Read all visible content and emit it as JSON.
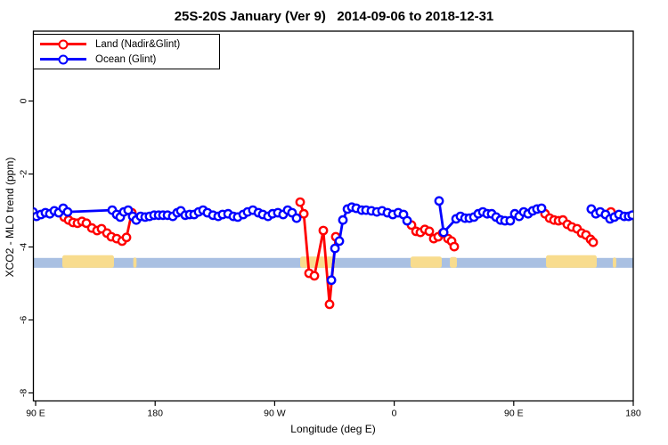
{
  "title": "25S-20S January (Ver 9)   2014-09-06 to 2018-12-31",
  "legend": {
    "items": [
      {
        "label": "Land (Nadir&Glint)",
        "color": "#ff0000"
      },
      {
        "label": "Ocean (Glint)",
        "color": "#0000ff"
      }
    ]
  },
  "chart_data": {
    "type": "line",
    "title": "25S-20S January (Ver 9)   2014-09-06 to 2018-12-31",
    "xlabel": "Longitude (deg E)",
    "ylabel": "XCO2 - MLO trend (ppm)",
    "grid": false,
    "legend_position": "top-left",
    "xlim": [
      88,
      540
    ],
    "ylim": [
      -8.2,
      1.9
    ],
    "x_axis": {
      "ticks": [
        {
          "deg": 90,
          "label": "90 E"
        },
        {
          "deg": 180,
          "label": "180"
        },
        {
          "deg": 270,
          "label": "90 W"
        },
        {
          "deg": 360,
          "label": "0"
        },
        {
          "deg": 450,
          "label": "90 E"
        },
        {
          "deg": 540,
          "label": "180"
        }
      ]
    },
    "y_axis": {
      "ticks": [
        {
          "value": 0,
          "label": "0"
        },
        {
          "value": -2,
          "label": "-2"
        },
        {
          "value": -4,
          "label": "-4"
        },
        {
          "value": -6,
          "label": "-6"
        },
        {
          "value": -8,
          "label": "-8"
        }
      ]
    },
    "reference_band": {
      "ocean_color": "#a9c0e2",
      "land_color": "#f8dc8e",
      "y_from": -4.3,
      "y_to": -4.57,
      "land_segments": [
        {
          "name": "australia",
          "from": 110.1,
          "to": 149.0,
          "bump": 3
        },
        {
          "name": "new-caledonia",
          "from": 163.5,
          "to": 166.0,
          "bump": 0.5
        },
        {
          "name": "south-america",
          "from": 289.2,
          "to": 315.4,
          "bump": 1.5
        },
        {
          "name": "africa",
          "from": 372.3,
          "to": 395.8,
          "bump": 1.5
        },
        {
          "name": "madagascar",
          "from": 401.9,
          "to": 407.2,
          "bump": 1
        },
        {
          "name": "australia-2",
          "from": 474.3,
          "to": 512.5,
          "bump": 3
        },
        {
          "name": "new-caledonia-2",
          "from": 524.6,
          "to": 527.2,
          "bump": 0.5
        }
      ]
    },
    "series": [
      {
        "name": "Land (Nadir&Glint)",
        "color": "#ff0000",
        "segments": [
          [
            [
              111.5,
              -3.18
            ],
            [
              114.8,
              -3.26
            ],
            [
              118.2,
              -3.33
            ],
            [
              121.5,
              -3.35
            ],
            [
              124.9,
              -3.3
            ],
            [
              128.2,
              -3.35
            ],
            [
              132.3,
              -3.48
            ],
            [
              136.3,
              -3.55
            ],
            [
              139.6,
              -3.5
            ],
            [
              143.7,
              -3.62
            ],
            [
              147.0,
              -3.72
            ],
            [
              151.0,
              -3.77
            ],
            [
              155.1,
              -3.84
            ],
            [
              158.4,
              -3.74
            ],
            [
              162.4,
              -3.06
            ]
          ],
          [
            [
              289.2,
              -2.77
            ],
            [
              291.9,
              -3.09
            ],
            [
              295.9,
              -4.72
            ],
            [
              299.9,
              -4.79
            ],
            [
              306.6,
              -3.55
            ],
            [
              311.3,
              -5.57
            ],
            [
              316.0,
              -3.72
            ]
          ],
          [
            [
              373.0,
              -3.4
            ],
            [
              376.4,
              -3.57
            ],
            [
              379.7,
              -3.6
            ],
            [
              383.1,
              -3.52
            ],
            [
              386.4,
              -3.57
            ],
            [
              389.8,
              -3.77
            ],
            [
              393.1,
              -3.72
            ],
            [
              396.5,
              -3.62
            ],
            [
              400.5,
              -3.77
            ],
            [
              403.2,
              -3.84
            ],
            [
              405.2,
              -3.99
            ]
          ],
          [
            [
              473.6,
              -3.09
            ],
            [
              477.0,
              -3.21
            ],
            [
              480.3,
              -3.26
            ],
            [
              483.7,
              -3.28
            ],
            [
              487.0,
              -3.26
            ],
            [
              490.4,
              -3.38
            ],
            [
              493.7,
              -3.45
            ],
            [
              497.7,
              -3.5
            ],
            [
              501.1,
              -3.62
            ],
            [
              504.4,
              -3.67
            ],
            [
              507.8,
              -3.79
            ],
            [
              509.8,
              -3.87
            ]
          ],
          [
            [
              523.2,
              -3.04
            ]
          ]
        ]
      },
      {
        "name": "Ocean (Glint)",
        "color": "#0000ff",
        "segments": [
          [
            [
              88.0,
              -3.04
            ],
            [
              90.7,
              -3.16
            ],
            [
              94.0,
              -3.11
            ],
            [
              97.4,
              -3.06
            ],
            [
              100.7,
              -3.09
            ],
            [
              104.1,
              -3.01
            ],
            [
              107.4,
              -3.06
            ],
            [
              110.8,
              -2.94
            ],
            [
              114.1,
              -3.04
            ],
            [
              147.7,
              -2.99
            ],
            [
              151.0,
              -3.11
            ],
            [
              153.7,
              -3.18
            ],
            [
              156.4,
              -3.04
            ],
            [
              159.7,
              -2.99
            ],
            [
              163.1,
              -3.16
            ],
            [
              165.8,
              -3.26
            ],
            [
              169.1,
              -3.16
            ],
            [
              172.5,
              -3.18
            ],
            [
              175.8,
              -3.16
            ],
            [
              179.2,
              -3.13
            ],
            [
              182.6,
              -3.13
            ],
            [
              185.9,
              -3.13
            ],
            [
              189.3,
              -3.13
            ],
            [
              193.3,
              -3.16
            ],
            [
              196.6,
              -3.06
            ],
            [
              199.3,
              -3.01
            ],
            [
              202.7,
              -3.13
            ],
            [
              206.0,
              -3.11
            ],
            [
              209.4,
              -3.11
            ],
            [
              212.7,
              -3.04
            ],
            [
              216.1,
              -2.99
            ],
            [
              219.4,
              -3.06
            ],
            [
              223.5,
              -3.13
            ],
            [
              227.5,
              -3.16
            ],
            [
              230.8,
              -3.11
            ],
            [
              234.9,
              -3.09
            ],
            [
              238.9,
              -3.16
            ],
            [
              242.2,
              -3.18
            ],
            [
              246.3,
              -3.11
            ],
            [
              249.6,
              -3.04
            ],
            [
              253.6,
              -2.99
            ],
            [
              257.7,
              -3.06
            ],
            [
              261.0,
              -3.11
            ],
            [
              265.0,
              -3.16
            ],
            [
              268.4,
              -3.09
            ],
            [
              272.4,
              -3.06
            ],
            [
              276.4,
              -3.11
            ],
            [
              279.8,
              -2.99
            ],
            [
              283.1,
              -3.06
            ],
            [
              286.5,
              -3.21
            ]
          ],
          [
            [
              312.7,
              -4.91
            ],
            [
              315.4,
              -4.04
            ],
            [
              318.7,
              -3.84
            ],
            [
              321.4,
              -3.26
            ],
            [
              324.8,
              -2.96
            ],
            [
              328.1,
              -2.91
            ],
            [
              331.4,
              -2.94
            ],
            [
              335.5,
              -2.99
            ],
            [
              338.8,
              -2.99
            ],
            [
              342.8,
              -3.01
            ],
            [
              346.9,
              -3.04
            ],
            [
              350.9,
              -3.01
            ],
            [
              354.9,
              -3.06
            ],
            [
              358.9,
              -3.11
            ],
            [
              363.0,
              -3.06
            ],
            [
              367.0,
              -3.11
            ],
            [
              369.7,
              -3.28
            ]
          ],
          [
            [
              393.8,
              -2.74
            ],
            [
              397.2,
              -3.6
            ],
            [
              406.6,
              -3.23
            ],
            [
              409.9,
              -3.16
            ],
            [
              413.3,
              -3.21
            ],
            [
              416.6,
              -3.21
            ],
            [
              420.0,
              -3.18
            ],
            [
              423.3,
              -3.09
            ],
            [
              426.7,
              -3.04
            ],
            [
              430.0,
              -3.09
            ],
            [
              433.4,
              -3.09
            ],
            [
              436.7,
              -3.18
            ],
            [
              440.1,
              -3.26
            ],
            [
              443.4,
              -3.28
            ],
            [
              447.4,
              -3.28
            ],
            [
              450.8,
              -3.09
            ],
            [
              454.1,
              -3.16
            ],
            [
              457.5,
              -3.04
            ],
            [
              460.8,
              -3.09
            ],
            [
              464.2,
              -3.01
            ],
            [
              467.5,
              -2.96
            ],
            [
              470.9,
              -2.94
            ]
          ],
          [
            [
              508.4,
              -2.96
            ],
            [
              511.8,
              -3.09
            ],
            [
              515.1,
              -3.04
            ],
            [
              519.1,
              -3.11
            ],
            [
              522.5,
              -3.23
            ],
            [
              525.8,
              -3.18
            ],
            [
              529.2,
              -3.11
            ],
            [
              533.2,
              -3.16
            ],
            [
              536.5,
              -3.16
            ],
            [
              539.2,
              -3.13
            ]
          ]
        ]
      }
    ]
  }
}
